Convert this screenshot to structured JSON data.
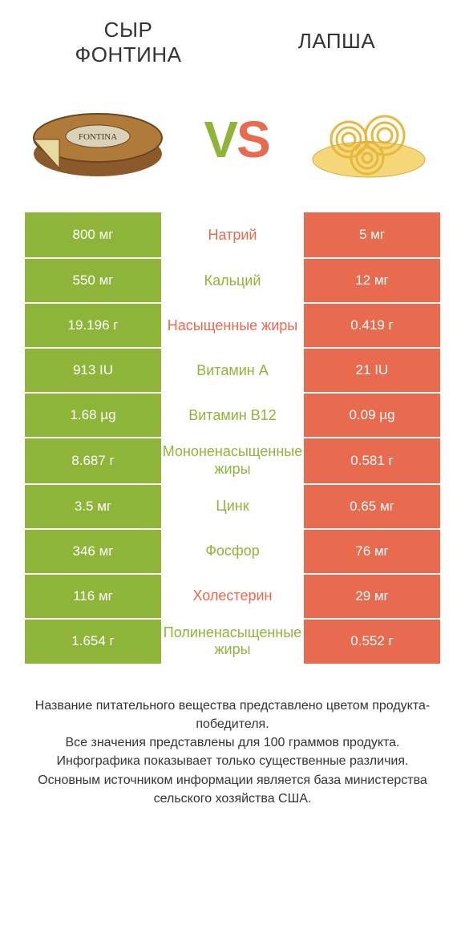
{
  "colors": {
    "green": "#8fb43a",
    "orange": "#e86a4f",
    "text": "#333333",
    "white": "#ffffff"
  },
  "header": {
    "left_title": "СЫР ФОНТИНА",
    "right_title": "ЛАПША",
    "vs_v": "V",
    "vs_s": "S"
  },
  "table": {
    "rows": [
      {
        "left": "800 мг",
        "label": "Натрий",
        "right": "5 мг",
        "winner": "left",
        "label_color": "orange"
      },
      {
        "left": "550 мг",
        "label": "Кальций",
        "right": "12 мг",
        "winner": "left",
        "label_color": "green"
      },
      {
        "left": "19.196 г",
        "label": "Насыщенные жиры",
        "right": "0.419 г",
        "winner": "left",
        "label_color": "orange"
      },
      {
        "left": "913 IU",
        "label": "Витамин A",
        "right": "21 IU",
        "winner": "left",
        "label_color": "green"
      },
      {
        "left": "1.68 µg",
        "label": "Витамин B12",
        "right": "0.09 µg",
        "winner": "left",
        "label_color": "green"
      },
      {
        "left": "8.687 г",
        "label": "Мононенасыщенные жиры",
        "right": "0.581 г",
        "winner": "left",
        "label_color": "green"
      },
      {
        "left": "3.5 мг",
        "label": "Цинк",
        "right": "0.65 мг",
        "winner": "left",
        "label_color": "green"
      },
      {
        "left": "346 мг",
        "label": "Фосфор",
        "right": "76 мг",
        "winner": "left",
        "label_color": "green"
      },
      {
        "left": "116 мг",
        "label": "Холестерин",
        "right": "29 мг",
        "winner": "left",
        "label_color": "orange"
      },
      {
        "left": "1.654 г",
        "label": "Полиненасыщенные жиры",
        "right": "0.552 г",
        "winner": "left",
        "label_color": "green"
      }
    ]
  },
  "footer": {
    "line1": "Название питательного вещества представлено цветом продукта-победителя.",
    "line2": "Все значения представлены для 100 граммов продукта.",
    "line3": "Инфографика показывает только существенные различия.",
    "line4": "Основным источником информации является база министерства сельского хозяйства США."
  }
}
